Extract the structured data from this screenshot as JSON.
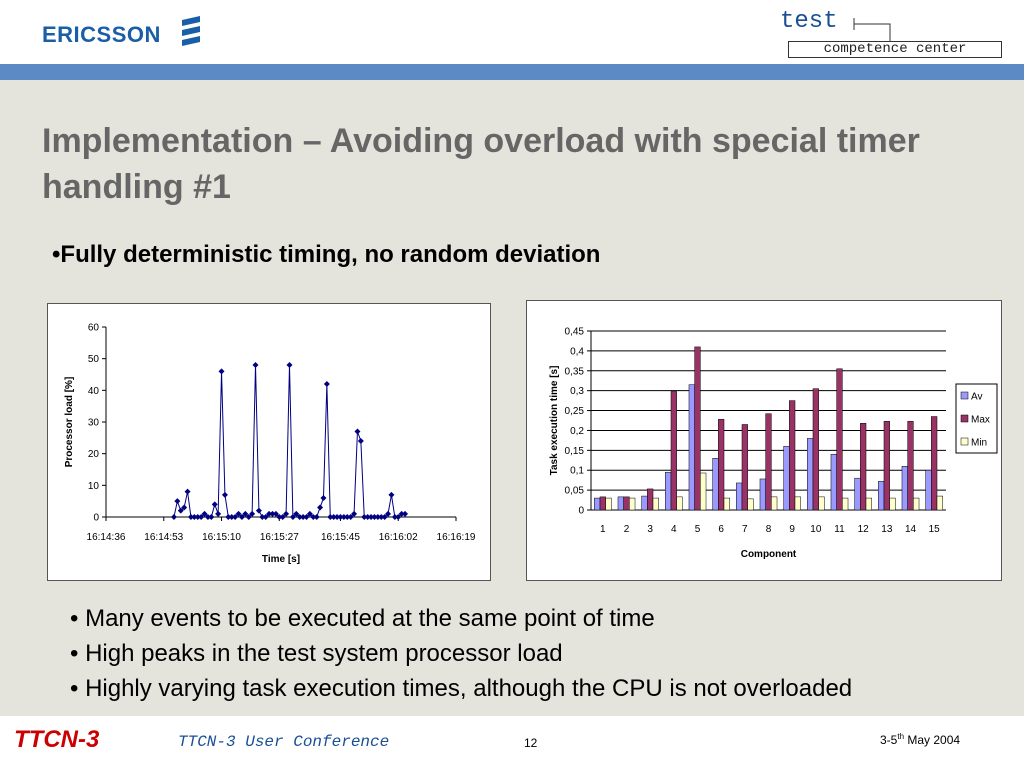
{
  "header": {
    "logo": "ERICSSON",
    "badge_top": "test",
    "badge_bottom": "competence center"
  },
  "title": "Implementation – Avoiding overload with special timer handling #1",
  "lead_bullet": "•Fully deterministic timing, no random deviation",
  "bullets": [
    "• Many events to be executed at the same point of time",
    "• High peaks in the test system processor load",
    "• Highly varying task execution times, although the CPU is not overloaded"
  ],
  "footer": {
    "brand": "TTCN-3",
    "conference": "TTCN-3 User Conference",
    "page": "12",
    "date_start": "3-5",
    "date_sup": "th",
    "date_end": " May 2004"
  },
  "chart_data": [
    {
      "type": "line",
      "ylabel": "Processor load [%]",
      "xlabel": "Time [s]",
      "color": "#000080",
      "grid": false,
      "x": [
        58496,
        58497,
        58498,
        58499,
        58500,
        58501,
        58502,
        58503,
        58504,
        58505,
        58506,
        58507,
        58508,
        58509,
        58510,
        58511,
        58512,
        58513,
        58514,
        58515,
        58516,
        58517,
        58518,
        58519,
        58520,
        58521,
        58522,
        58523,
        58524,
        58525,
        58526,
        58527,
        58528,
        58529,
        58530,
        58531,
        58532,
        58533,
        58534,
        58535,
        58536,
        58537,
        58538,
        58539,
        58540,
        58541,
        58542,
        58543,
        58544,
        58545,
        58546,
        58547,
        58548,
        58549,
        58550,
        58551,
        58552,
        58553,
        58554,
        58555,
        58556,
        58557,
        58558,
        58559,
        58560,
        58561,
        58562,
        58563,
        58564
      ],
      "values": [
        0,
        5,
        2,
        3,
        8,
        0,
        0,
        0,
        0,
        1,
        0,
        0,
        4,
        1,
        46,
        7,
        0,
        0,
        0,
        1,
        0,
        1,
        0,
        1,
        48,
        2,
        0,
        0,
        1,
        1,
        1,
        0,
        0,
        1,
        48,
        0,
        1,
        0,
        0,
        0,
        1,
        0,
        0,
        3,
        6,
        42,
        0,
        0,
        0,
        0,
        0,
        0,
        0,
        1,
        27,
        24,
        0,
        0,
        0,
        0,
        0,
        0,
        0,
        1,
        7,
        0,
        0,
        1,
        1
      ],
      "xlim": [
        58476,
        58579
      ],
      "xticks": [
        {
          "value": 58476,
          "label": "16:14:36"
        },
        {
          "value": 58493,
          "label": "16:14:53"
        },
        {
          "value": 58510,
          "label": "16:15:10"
        },
        {
          "value": 58527,
          "label": "16:15:27"
        },
        {
          "value": 58545,
          "label": "16:15:45"
        },
        {
          "value": 58562,
          "label": "16:16:02"
        },
        {
          "value": 58579,
          "label": "16:16:19"
        }
      ],
      "ylim": [
        0,
        60
      ],
      "yticks": [
        0,
        10,
        20,
        30,
        40,
        50,
        60
      ]
    },
    {
      "type": "bar",
      "ylabel": "Task execution time [s]",
      "xlabel": "Component",
      "grid": true,
      "legend": "right",
      "categories": [
        "1",
        "2",
        "3",
        "4",
        "5",
        "6",
        "7",
        "8",
        "9",
        "10",
        "11",
        "12",
        "13",
        "14",
        "15"
      ],
      "series": [
        {
          "name": "Av",
          "color": "#9999ff",
          "values": [
            0.03,
            0.033,
            0.035,
            0.095,
            0.315,
            0.13,
            0.068,
            0.078,
            0.16,
            0.18,
            0.14,
            0.08,
            0.072,
            0.11,
            0.1
          ]
        },
        {
          "name": "Max",
          "color": "#993366",
          "values": [
            0.033,
            0.033,
            0.053,
            0.298,
            0.41,
            0.228,
            0.215,
            0.242,
            0.275,
            0.305,
            0.355,
            0.218,
            0.223,
            0.223,
            0.235
          ]
        },
        {
          "name": "Min",
          "color": "#ffffcc",
          "values": [
            0.03,
            0.03,
            0.03,
            0.033,
            0.093,
            0.03,
            0.028,
            0.033,
            0.033,
            0.033,
            0.03,
            0.03,
            0.03,
            0.03,
            0.035
          ]
        }
      ],
      "ylim": [
        0,
        0.45
      ],
      "yticks": [
        0,
        {
          "value": 0.05,
          "label": "0,05"
        },
        {
          "value": 0.1,
          "label": "0,1"
        },
        {
          "value": 0.15,
          "label": "0,15"
        },
        {
          "value": 0.2,
          "label": "0,2"
        },
        {
          "value": 0.25,
          "label": "0,25"
        },
        {
          "value": 0.3,
          "label": "0,3"
        },
        {
          "value": 0.35,
          "label": "0,35"
        },
        {
          "value": 0.4,
          "label": "0,4"
        },
        {
          "value": 0.45,
          "label": "0,45"
        }
      ]
    }
  ]
}
